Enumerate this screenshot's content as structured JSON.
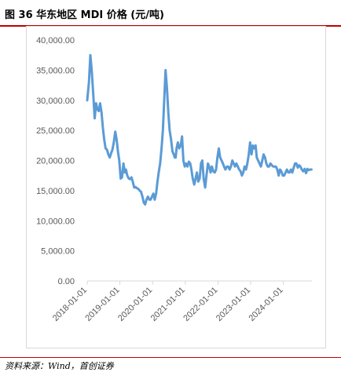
{
  "figure": {
    "title": "图 36 华东地区 MDI 价格 (元/吨)",
    "source": "资料来源：Wind，首创证券"
  },
  "colors": {
    "line": "#5b9bd5",
    "rule": "#c00000",
    "axis": "#d9d9d9",
    "text": "#595959"
  },
  "chart_data": {
    "type": "line",
    "title": "",
    "xlabel": "",
    "ylabel": "",
    "ylim": [
      0,
      40000
    ],
    "yticks": [
      0,
      5000,
      10000,
      15000,
      20000,
      25000,
      30000,
      35000,
      40000
    ],
    "ytick_labels": [
      "0.00",
      "5,000.00",
      "10,000.00",
      "15,000.00",
      "20,000.00",
      "25,000.00",
      "30,000.00",
      "35,000.00",
      "40,000.00"
    ],
    "xlim": [
      "2018-01-01",
      "2024-11-15"
    ],
    "xtick_labels": [
      "2018-01-01",
      "2019-01-01",
      "2020-01-01",
      "2021-01-01",
      "2022-01-01",
      "2023-01-01",
      "2024-01-01"
    ],
    "grid": false,
    "legend": "none",
    "series": [
      {
        "x": [
          "2018-01-01",
          "2018-01-20",
          "2018-02-05",
          "2018-02-20",
          "2018-03-10",
          "2018-03-25",
          "2018-04-10",
          "2018-04-25",
          "2018-05-10",
          "2018-05-25",
          "2018-06-10",
          "2018-06-25",
          "2018-07-10",
          "2018-07-25",
          "2018-08-10",
          "2018-08-25",
          "2018-09-10",
          "2018-09-25",
          "2018-10-10",
          "2018-10-25",
          "2018-11-10",
          "2018-11-25",
          "2018-12-10",
          "2018-12-25",
          "2019-01-10",
          "2019-01-25",
          "2019-02-10",
          "2019-02-25",
          "2019-03-10",
          "2019-03-25",
          "2019-04-10",
          "2019-04-25",
          "2019-05-10",
          "2019-05-25",
          "2019-06-10",
          "2019-06-25",
          "2019-07-10",
          "2019-07-25",
          "2019-08-10",
          "2019-08-25",
          "2019-09-10",
          "2019-09-25",
          "2019-10-10",
          "2019-10-25",
          "2019-11-10",
          "2019-11-25",
          "2019-12-10",
          "2019-12-25",
          "2020-01-10",
          "2020-01-25",
          "2020-02-10",
          "2020-02-25",
          "2020-03-10",
          "2020-03-25",
          "2020-04-10",
          "2020-04-25",
          "2020-05-10",
          "2020-05-25",
          "2020-06-10",
          "2020-06-25",
          "2020-07-10",
          "2020-07-25",
          "2020-08-10",
          "2020-08-25",
          "2020-09-05",
          "2020-09-15",
          "2020-09-25",
          "2020-10-10",
          "2020-10-25",
          "2020-11-10",
          "2020-11-25",
          "2020-12-10",
          "2020-12-25",
          "2021-01-10",
          "2021-01-25",
          "2021-02-10",
          "2021-02-25",
          "2021-03-10",
          "2021-03-25",
          "2021-04-10",
          "2021-04-25",
          "2021-05-10",
          "2021-05-25",
          "2021-06-10",
          "2021-06-25",
          "2021-07-10",
          "2021-07-25",
          "2021-08-10",
          "2021-08-25",
          "2021-09-10",
          "2021-09-25",
          "2021-10-10",
          "2021-10-25",
          "2021-11-10",
          "2021-11-25",
          "2021-12-10",
          "2021-12-25",
          "2022-01-10",
          "2022-01-25",
          "2022-02-10",
          "2022-02-25",
          "2022-03-10",
          "2022-03-25",
          "2022-04-10",
          "2022-04-25",
          "2022-05-10",
          "2022-05-25",
          "2022-06-10",
          "2022-06-25",
          "2022-07-10",
          "2022-07-25",
          "2022-08-10",
          "2022-08-25",
          "2022-09-10",
          "2022-09-25",
          "2022-10-10",
          "2022-10-25",
          "2022-11-10",
          "2022-11-25",
          "2022-12-10",
          "2022-12-25",
          "2023-01-10",
          "2023-01-25",
          "2023-02-10",
          "2023-02-25",
          "2023-03-10",
          "2023-03-25",
          "2023-04-10",
          "2023-04-25",
          "2023-05-10",
          "2023-05-25",
          "2023-06-10",
          "2023-06-25",
          "2023-07-10",
          "2023-07-25",
          "2023-08-10",
          "2023-08-25",
          "2023-09-10",
          "2023-09-25",
          "2023-10-10",
          "2023-10-25",
          "2023-11-10",
          "2023-11-25",
          "2023-12-10",
          "2023-12-25",
          "2024-01-10",
          "2024-01-25",
          "2024-02-10",
          "2024-02-25",
          "2024-03-10",
          "2024-03-25",
          "2024-04-10",
          "2024-04-25",
          "2024-05-10",
          "2024-05-25",
          "2024-06-10",
          "2024-06-25",
          "2024-07-10",
          "2024-07-25",
          "2024-08-10",
          "2024-08-25",
          "2024-09-10",
          "2024-09-25",
          "2024-10-10",
          "2024-10-25",
          "2024-11-10"
        ],
        "y": [
          30000,
          33000,
          37500,
          35000,
          31000,
          27000,
          29500,
          28500,
          28200,
          29500,
          28000,
          25500,
          23500,
          22000,
          21800,
          21000,
          20500,
          21200,
          21800,
          23000,
          24800,
          23500,
          21500,
          20000,
          17000,
          17200,
          19500,
          18000,
          18500,
          17500,
          17000,
          16900,
          17200,
          16500,
          15500,
          15600,
          15400,
          15300,
          15000,
          14800,
          14000,
          13000,
          12700,
          13500,
          14000,
          13500,
          13500,
          14000,
          14500,
          13500,
          14500,
          16500,
          18000,
          19500,
          22000,
          25000,
          30000,
          35000,
          32000,
          28000,
          25000,
          23500,
          21500,
          21000,
          20500,
          20500,
          22000,
          23000,
          22000,
          22500,
          24000,
          20000,
          19000,
          19500,
          19000,
          19800,
          19500,
          18500,
          17000,
          16000,
          17000,
          18000,
          16500,
          17000,
          19500,
          20000,
          17000,
          15500,
          17500,
          19500,
          19000,
          18000,
          19000,
          18200,
          18000,
          18500,
          20500,
          22000,
          20500,
          20000,
          19500,
          19000,
          18500,
          19000,
          19000,
          18500,
          19000,
          20000,
          19500,
          19000,
          19500,
          19000,
          18500,
          18200,
          17500,
          18000,
          19000,
          18500,
          19500,
          21000,
          23000,
          21000,
          22500,
          22000,
          22500,
          20500,
          20000,
          19500,
          19000,
          20000,
          21000,
          20500,
          19500,
          19000,
          19000,
          19500,
          19200,
          19000,
          19000,
          19000,
          18500,
          17500,
          18500,
          18200,
          17500,
          17500,
          18000,
          18500,
          18000,
          18000,
          18500,
          18000,
          18800,
          19500,
          19500,
          18800,
          19200,
          19000,
          18500,
          18200,
          18600,
          17900,
          18600,
          18400,
          18500,
          18500
        ]
      }
    ]
  }
}
